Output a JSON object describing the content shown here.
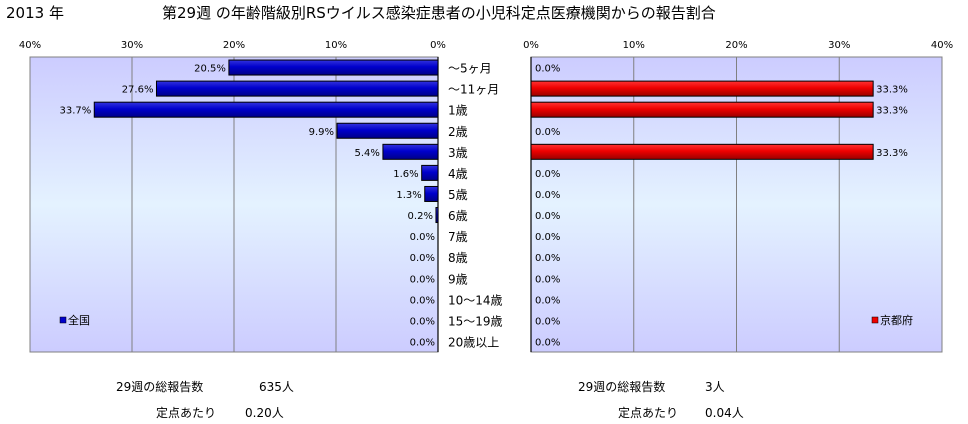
{
  "header": {
    "year": "2013 年",
    "title": "第29週 の年齢階級別RSウイルス感染症患者の小児科定点医療機関からの報告割合"
  },
  "chart_data": [
    {
      "type": "bar",
      "orientation": "horizontal",
      "direction": "right-to-left",
      "categories": [
        "～5ヶ月",
        "～11ヶ月",
        "1歳",
        "2歳",
        "3歳",
        "4歳",
        "5歳",
        "6歳",
        "7歳",
        "8歳",
        "9歳",
        "10～14歳",
        "15～19歳",
        "20歳以上"
      ],
      "series": [
        {
          "name": "全国",
          "color": "#0000cc",
          "values": [
            20.5,
            27.6,
            33.7,
            9.9,
            5.4,
            1.6,
            1.3,
            0.2,
            0.0,
            0.0,
            0.0,
            0.0,
            0.0,
            0.0
          ],
          "labels": [
            "20.5%",
            "27.6%",
            "33.7%",
            "9.9%",
            "5.4%",
            "1.6%",
            "1.3%",
            "0.2%",
            "0.0%",
            "0.0%",
            "0.0%",
            "0.0%",
            "0.0%",
            "0.0%"
          ]
        }
      ],
      "xlim": [
        0,
        40
      ],
      "x_ticks": [
        "40%",
        "30%",
        "20%",
        "10%",
        "0%"
      ],
      "grid": true,
      "legend": "bottom-left"
    },
    {
      "type": "bar",
      "orientation": "horizontal",
      "direction": "left-to-right",
      "categories": [
        "～5ヶ月",
        "～11ヶ月",
        "1歳",
        "2歳",
        "3歳",
        "4歳",
        "5歳",
        "6歳",
        "7歳",
        "8歳",
        "9歳",
        "10～14歳",
        "15～19歳",
        "20歳以上"
      ],
      "series": [
        {
          "name": "京都府",
          "color": "#ee0000",
          "values": [
            0.0,
            33.3,
            33.3,
            0.0,
            33.3,
            0.0,
            0.0,
            0.0,
            0.0,
            0.0,
            0.0,
            0.0,
            0.0,
            0.0
          ],
          "labels": [
            "0.0%",
            "33.3%",
            "33.3%",
            "0.0%",
            "33.3%",
            "0.0%",
            "0.0%",
            "0.0%",
            "0.0%",
            "0.0%",
            "0.0%",
            "0.0%",
            "0.0%",
            "0.0%"
          ]
        }
      ],
      "xlim": [
        0,
        40
      ],
      "x_ticks": [
        "0%",
        "10%",
        "20%",
        "30%",
        "40%"
      ],
      "grid": true,
      "legend": "bottom-right"
    }
  ],
  "stats": {
    "national": {
      "total_label": "29週の総報告数",
      "total_value": "635人",
      "per_label": "定点あたり",
      "per_value": "0.20人"
    },
    "kyoto": {
      "total_label": "29週の総報告数",
      "total_value": "3人",
      "per_label": "定点あたり",
      "per_value": "0.04人"
    }
  }
}
